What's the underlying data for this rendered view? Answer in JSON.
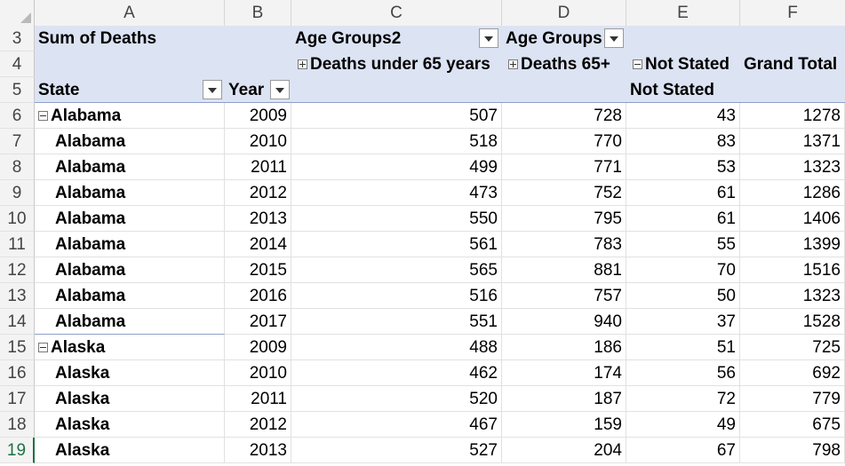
{
  "columns": [
    "A",
    "B",
    "C",
    "D",
    "E",
    "F"
  ],
  "row_numbers": [
    "3",
    "4",
    "5",
    "6",
    "7",
    "8",
    "9",
    "10",
    "11",
    "12",
    "13",
    "14",
    "15",
    "16",
    "17",
    "18",
    "19"
  ],
  "pivot": {
    "values_label": "Sum of Deaths",
    "col_field_1": "Age Groups2",
    "col_field_2": "Age Groups",
    "col_item_1": "Deaths under 65 years",
    "col_item_2": "Deaths 65+",
    "col_item_3": "Not Stated",
    "col_item_3_sub": "Not Stated",
    "grand_total": "Grand Total",
    "row_field_1": "State",
    "row_field_2": "Year"
  },
  "rows": [
    {
      "state": "Alabama",
      "year": "2009",
      "c": "507",
      "d": "728",
      "e": "43",
      "f": "1278"
    },
    {
      "state": "Alabama",
      "year": "2010",
      "c": "518",
      "d": "770",
      "e": "83",
      "f": "1371"
    },
    {
      "state": "Alabama",
      "year": "2011",
      "c": "499",
      "d": "771",
      "e": "53",
      "f": "1323"
    },
    {
      "state": "Alabama",
      "year": "2012",
      "c": "473",
      "d": "752",
      "e": "61",
      "f": "1286"
    },
    {
      "state": "Alabama",
      "year": "2013",
      "c": "550",
      "d": "795",
      "e": "61",
      "f": "1406"
    },
    {
      "state": "Alabama",
      "year": "2014",
      "c": "561",
      "d": "783",
      "e": "55",
      "f": "1399"
    },
    {
      "state": "Alabama",
      "year": "2015",
      "c": "565",
      "d": "881",
      "e": "70",
      "f": "1516"
    },
    {
      "state": "Alabama",
      "year": "2016",
      "c": "516",
      "d": "757",
      "e": "50",
      "f": "1323"
    },
    {
      "state": "Alabama",
      "year": "2017",
      "c": "551",
      "d": "940",
      "e": "37",
      "f": "1528"
    },
    {
      "state": "Alaska",
      "year": "2009",
      "c": "488",
      "d": "186",
      "e": "51",
      "f": "725"
    },
    {
      "state": "Alaska",
      "year": "2010",
      "c": "462",
      "d": "174",
      "e": "56",
      "f": "692"
    },
    {
      "state": "Alaska",
      "year": "2011",
      "c": "520",
      "d": "187",
      "e": "72",
      "f": "779"
    },
    {
      "state": "Alaska",
      "year": "2012",
      "c": "467",
      "d": "159",
      "e": "49",
      "f": "675"
    },
    {
      "state": "Alaska",
      "year": "2013",
      "c": "527",
      "d": "204",
      "e": "67",
      "f": "798"
    }
  ],
  "colors": {
    "pivot_header": "#dce3f3",
    "active_row": "#1e7145"
  }
}
